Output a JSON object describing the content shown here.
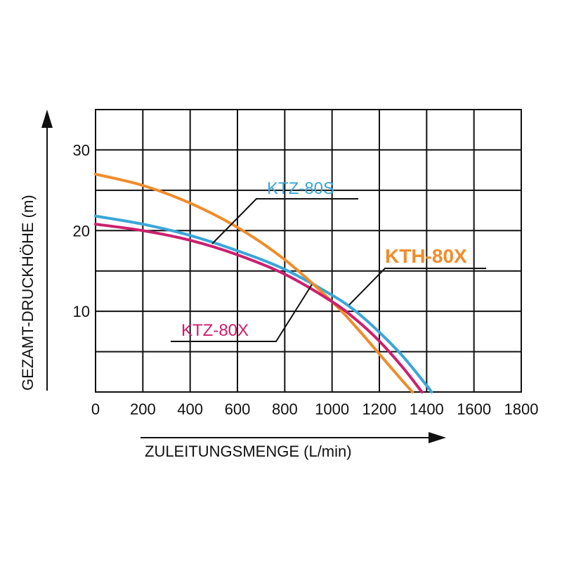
{
  "chart_data": {
    "type": "line",
    "title": "",
    "xlabel": "ZULEITUNGSMENGE (L/min)",
    "ylabel": "GEZAMT-DRUCKHÖHE (m)",
    "xlim": [
      0,
      1800
    ],
    "ylim": [
      0,
      35
    ],
    "x_ticks": [
      "0",
      "200",
      "400",
      "600",
      "800",
      "1000",
      "1200",
      "1400",
      "1600",
      "1800"
    ],
    "y_ticks": [
      "10",
      "20",
      "30"
    ],
    "grid": true,
    "series": [
      {
        "name": "KTZ-80S",
        "color": "#3aa6d8",
        "x": [
          0,
          200,
          400,
          600,
          800,
          1000,
          1100,
          1200,
          1300,
          1400,
          1420
        ],
        "y": [
          21.8,
          20.8,
          19.4,
          17.5,
          15.2,
          12.0,
          10.0,
          7.4,
          4.4,
          0.8,
          0
        ]
      },
      {
        "name": "KTH-80X",
        "color": "#f08c2a",
        "x": [
          0,
          200,
          400,
          600,
          800,
          1000,
          1100,
          1200,
          1300,
          1340
        ],
        "y": [
          27.0,
          25.6,
          23.4,
          20.4,
          16.4,
          11.2,
          8.1,
          4.7,
          1.3,
          0
        ]
      },
      {
        "name": "KTZ-80X",
        "color": "#cc1f6e",
        "x": [
          0,
          200,
          400,
          600,
          800,
          1000,
          1100,
          1200,
          1300,
          1380
        ],
        "y": [
          20.8,
          20.0,
          18.8,
          17.0,
          14.6,
          11.2,
          9.0,
          6.3,
          3.0,
          0
        ]
      }
    ]
  }
}
